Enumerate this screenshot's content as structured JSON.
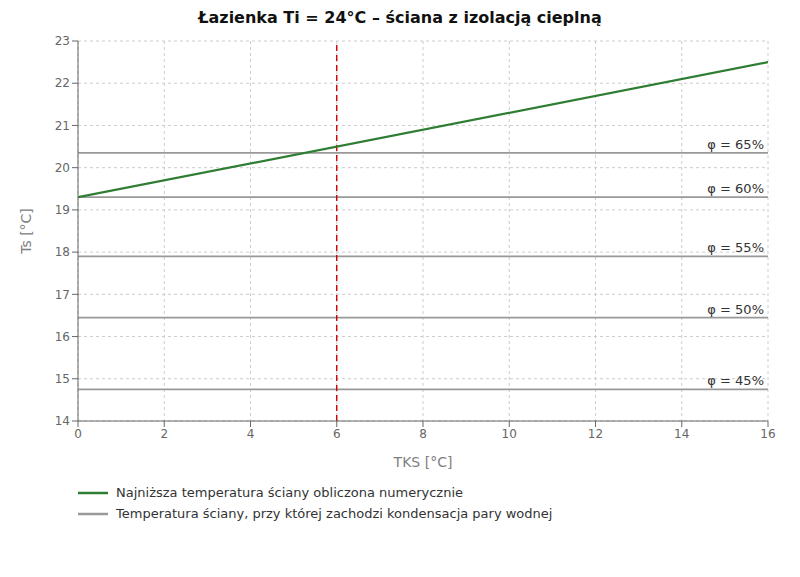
{
  "chart_data": {
    "type": "line",
    "title": "Łazienka Ti = 24°C – ściana z izolacją cieplną",
    "x_label": "TKS [°C]",
    "y_label": "Ts [°C]",
    "xlim": [
      0,
      16
    ],
    "ylim": [
      14,
      23
    ],
    "xticks": [
      0,
      2,
      4,
      6,
      8,
      10,
      12,
      14,
      16
    ],
    "yticks": [
      14,
      15,
      16,
      17,
      18,
      19,
      20,
      21,
      22,
      23
    ],
    "grid": true,
    "legend": "bottom",
    "series": [
      {
        "name": "Najniższa temperatura ściany obliczona numerycznie",
        "color": "#2e7d32",
        "x": [
          0,
          16
        ],
        "values": [
          19.3,
          22.5
        ]
      }
    ],
    "reference_lines": {
      "name": "Temperatura ściany, przy której zachodzi kondensacja pary wodnej",
      "color": "#999999",
      "lines": [
        {
          "y": 20.35,
          "label": "φ = 65%"
        },
        {
          "y": 19.3,
          "label": "φ = 60%"
        },
        {
          "y": 17.9,
          "label": "φ = 55%"
        },
        {
          "y": 16.45,
          "label": "φ = 50%"
        },
        {
          "y": 14.75,
          "label": "φ = 45%"
        }
      ]
    },
    "vline": {
      "x": 6,
      "color": "#cc0000",
      "line_style": "dashed"
    }
  }
}
